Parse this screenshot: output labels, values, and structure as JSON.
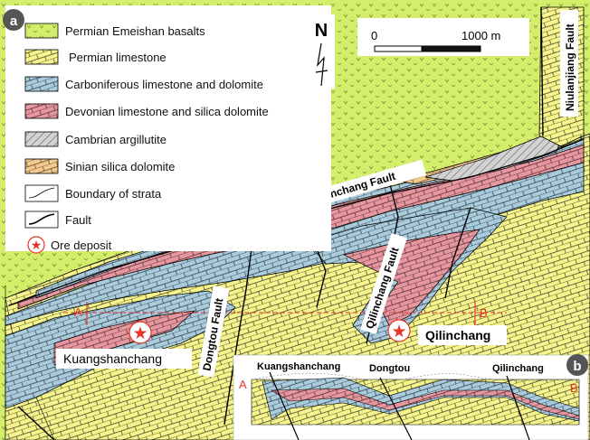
{
  "panels": {
    "main": "a",
    "section": "b"
  },
  "legend": [
    {
      "key": "basalt",
      "label": "Permian Emeishan basalts",
      "color": "#d4ee6c"
    },
    {
      "key": "plimestone",
      "label": "Permian limestone",
      "color": "#f6f48a"
    },
    {
      "key": "carb",
      "label": "Carboniferous limestone and dolomite",
      "color": "#a9cbdc"
    },
    {
      "key": "devon",
      "label": "Devonian limestone and silica dolomite",
      "color": "#e6969e"
    },
    {
      "key": "cambrian",
      "label": "Cambrian argillutite",
      "color": "#d2d2d2"
    },
    {
      "key": "sinian",
      "label": "Sinian silica dolomite",
      "color": "#f2c98e"
    },
    {
      "key": "boundary",
      "label": "Boundary of strata"
    },
    {
      "key": "fault",
      "label": "Fault"
    },
    {
      "key": "ore",
      "label": "Ore deposit",
      "color": "#e8342a"
    }
  ],
  "north": "N",
  "scale": {
    "start": "0",
    "end": "1000 m"
  },
  "faults": {
    "kuangshanchang": "Kuangshanchang Fault",
    "niulanjiang": "Niulanjiang Fault",
    "qilinchang": "Qilinchang Fault",
    "dongtou": "Dongtou Fault"
  },
  "deposits": {
    "kuangshanchang": "Kuangshanchang",
    "qilinchang": "Qilinchang"
  },
  "section_line": {
    "start": "A",
    "end": "B"
  },
  "cross_section": {
    "start": "A",
    "end": "B",
    "labels": [
      "Kuangshanchang",
      "Dongtou",
      "Qilinchang"
    ]
  }
}
